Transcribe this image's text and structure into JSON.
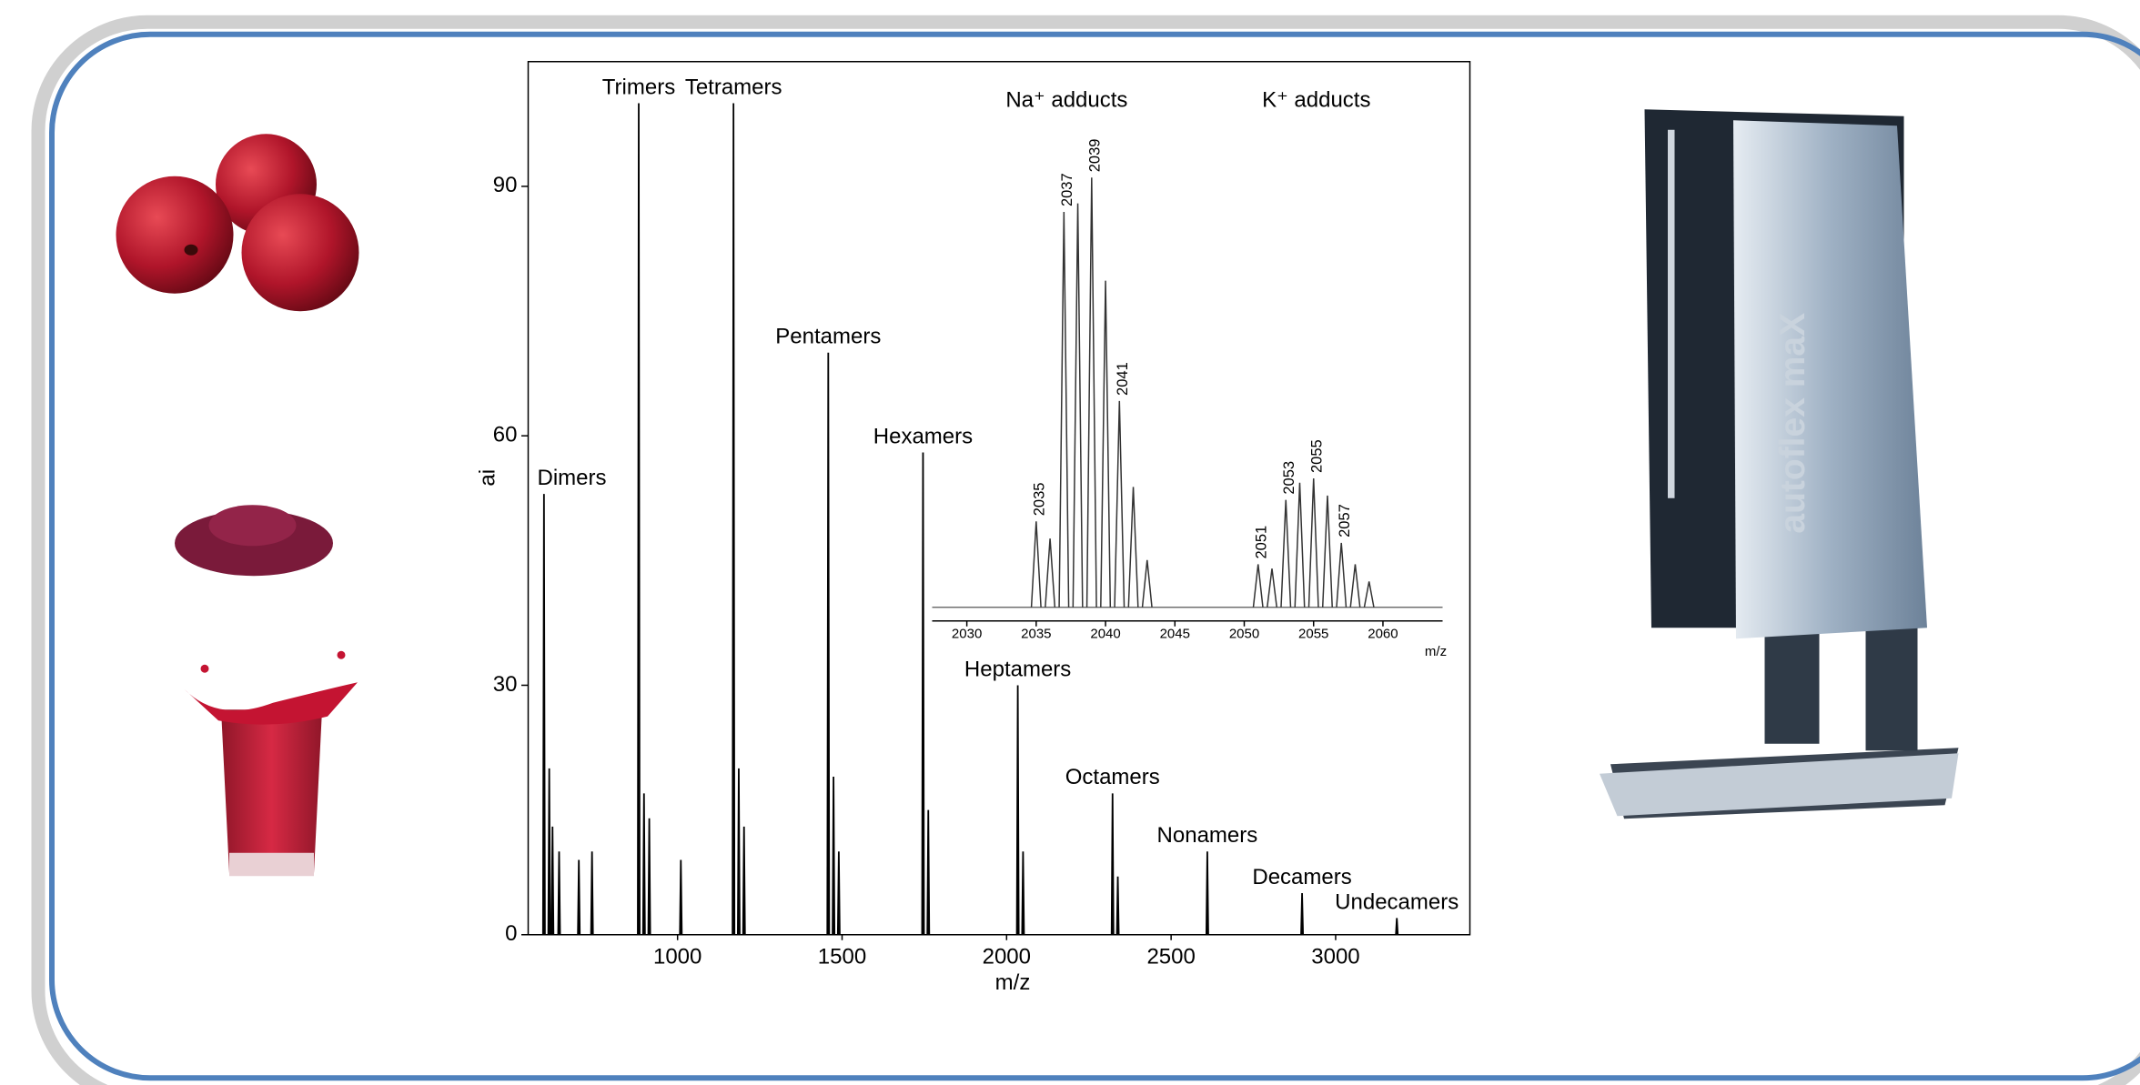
{
  "chart_data": [
    {
      "type": "spectrum",
      "xlabel": "m/z",
      "ylabel": "ai",
      "color": "#000000",
      "x": [
        594,
        610,
        620,
        640,
        700,
        740,
        882,
        898,
        914,
        1010,
        1170,
        1186,
        1202,
        1458,
        1474,
        1490,
        1746,
        1762,
        2034,
        2050,
        2322,
        2338,
        2610,
        2898,
        3186
      ],
      "values": [
        53,
        20,
        13,
        10,
        9,
        10,
        100,
        17,
        14,
        9,
        100,
        20,
        13,
        70,
        19,
        10,
        58,
        15,
        30,
        10,
        17,
        7,
        10,
        5,
        2
      ],
      "xlim": [
        546,
        3408
      ],
      "ylim": [
        0,
        105
      ],
      "xticks": [
        1000,
        1500,
        2000,
        2500,
        3000
      ],
      "yticks": [
        0,
        30,
        60,
        90
      ],
      "annotations": [
        {
          "text": "Dimers",
          "x": 594
        },
        {
          "text": "Trimers",
          "x": 882
        },
        {
          "text": "Tetramers",
          "x": 1170
        },
        {
          "text": "Pentamers",
          "x": 1458
        },
        {
          "text": "Hexamers",
          "x": 1746
        },
        {
          "text": "Heptamers",
          "x": 2034
        },
        {
          "text": "Octamers",
          "x": 2322
        },
        {
          "text": "Nonamers",
          "x": 2610
        },
        {
          "text": "Decamers",
          "x": 2898
        },
        {
          "text": "Undecamers",
          "x": 3186
        }
      ]
    },
    {
      "type": "spectrum",
      "xlabel": "m/z",
      "color": "#333333",
      "x": [
        2035,
        2036,
        2037,
        2038,
        2039,
        2040,
        2041,
        2042,
        2043,
        2051,
        2052,
        2053,
        2054,
        2055,
        2056,
        2057,
        2058,
        2059
      ],
      "values": [
        20,
        16,
        92,
        94,
        100,
        76,
        48,
        28,
        11,
        10,
        9,
        25,
        29,
        30,
        26,
        15,
        10,
        6
      ],
      "xlim": [
        2027.5,
        2064.3
      ],
      "ylim": [
        0,
        100
      ],
      "xticks": [
        2030,
        2035,
        2040,
        2045,
        2050,
        2055,
        2060
      ],
      "group_labels": [
        {
          "text": "Na⁺ adducts",
          "x": 2037.2
        },
        {
          "text": "K⁺ adducts",
          "x": 2055.2
        }
      ],
      "peak_labels": [
        2035,
        2037,
        2039,
        2041,
        2051,
        2053,
        2055,
        2057
      ]
    }
  ],
  "instrument": {
    "label": "autoflex maX"
  }
}
